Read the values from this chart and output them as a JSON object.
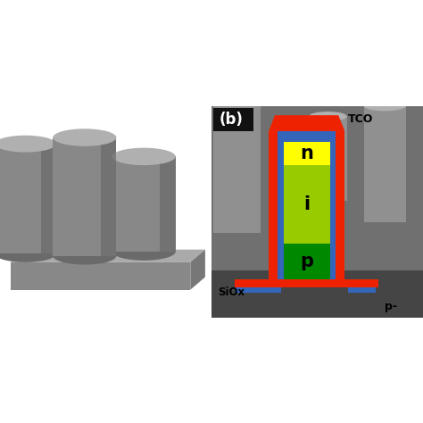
{
  "fig_width": 4.74,
  "fig_height": 4.74,
  "fig_dpi": 100,
  "bg_color": "#ffffff",
  "panel_b_label": "(b)",
  "panel_b_label_color": "#ffffff",
  "tco_label": "TCO",
  "n_label": "n",
  "i_label": "i",
  "p_label": "p",
  "siox_label": "SiOx",
  "p_minus_label": "p-",
  "tco_color": "#ee2200",
  "n_color": "#ffff00",
  "i_color": "#99cc00",
  "p_color": "#008800",
  "shell_color": "#3366bb",
  "base_color": "#ee2200",
  "siox_color": "#3366bb",
  "text_color": "#000000",
  "gray_body": "#888888",
  "gray_top": "#b0b0b0",
  "gray_side": "#6a6a6a",
  "gray_base_top": "#aaaaaa",
  "gray_base_side": "#777777",
  "gray_base_front": "#888888",
  "sem_bg": "#707070",
  "sem_dark": "#454545"
}
